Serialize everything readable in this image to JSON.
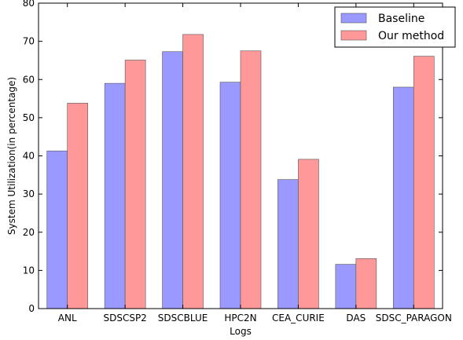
{
  "chart_data": {
    "type": "bar",
    "title": "",
    "xlabel": "Logs",
    "ylabel": "System Utilization(in percentage)",
    "ylim": [
      0,
      80
    ],
    "yticks": [
      0,
      10,
      20,
      30,
      40,
      50,
      60,
      70,
      80
    ],
    "grid": false,
    "legend_position": "top-right",
    "categories": [
      "ANL",
      "SDSCSP2",
      "SDSCBLUE",
      "HPC2N",
      "CEA_CURIE",
      "DAS",
      "SDSC_PARAGON"
    ],
    "series": [
      {
        "name": "Baseline",
        "color": "#9999ff",
        "values": [
          41.3,
          59.0,
          67.3,
          59.3,
          33.8,
          11.6,
          58.0
        ]
      },
      {
        "name": "Our method",
        "color": "#ff9999",
        "values": [
          53.8,
          65.1,
          71.8,
          67.5,
          39.1,
          13.1,
          66.1
        ]
      }
    ]
  }
}
